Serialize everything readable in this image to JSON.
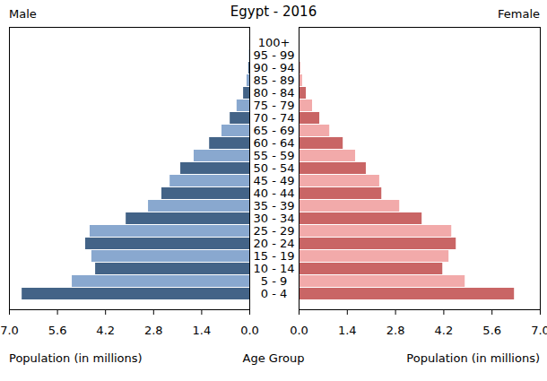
{
  "chart_data": {
    "type": "bar",
    "orientation": "horizontal",
    "title": "Egypt - 2016",
    "x_label": "Population (in millions)",
    "y_label": "Age Group",
    "categories": [
      "0 - 4",
      "5 - 9",
      "10 - 14",
      "15 - 19",
      "20 - 24",
      "25 - 29",
      "30 - 34",
      "35 - 39",
      "40 - 44",
      "45 - 49",
      "50 - 54",
      "55 - 59",
      "60 - 64",
      "65 - 69",
      "70 - 74",
      "75 - 79",
      "80 - 84",
      "85 - 89",
      "90 - 94",
      "95 - 99",
      "100+"
    ],
    "xlim": [
      0,
      7
    ],
    "xticks": [
      0,
      1.4,
      2.8,
      4.2,
      5.6,
      7
    ],
    "series": [
      {
        "name": "Male",
        "values": [
          6.63,
          5.17,
          4.49,
          4.6,
          4.78,
          4.65,
          3.6,
          2.95,
          2.56,
          2.32,
          2.01,
          1.62,
          1.17,
          0.81,
          0.57,
          0.37,
          0.18,
          0.08,
          0.03,
          0.01,
          0.003
        ],
        "colors": [
          "#436387",
          "#89a8cf",
          "#436387",
          "#89a8cf",
          "#436387",
          "#89a8cf",
          "#436387",
          "#89a8cf",
          "#436387",
          "#89a8cf",
          "#436387",
          "#89a8cf",
          "#436387",
          "#89a8cf",
          "#436387",
          "#89a8cf",
          "#436387",
          "#89a8cf",
          "#436387",
          "#89a8cf",
          "#436387"
        ]
      },
      {
        "name": "Female",
        "values": [
          6.25,
          4.82,
          4.17,
          4.35,
          4.56,
          4.43,
          3.57,
          2.92,
          2.4,
          2.34,
          1.95,
          1.64,
          1.28,
          0.89,
          0.6,
          0.39,
          0.21,
          0.1,
          0.04,
          0.01,
          0.002
        ],
        "colors": [
          "#c96565",
          "#f2aaaa",
          "#c96565",
          "#f2aaaa",
          "#c96565",
          "#f2aaaa",
          "#c96565",
          "#f2aaaa",
          "#c96565",
          "#f2aaaa",
          "#c96565",
          "#f2aaaa",
          "#c96565",
          "#f2aaaa",
          "#c96565",
          "#f2aaaa",
          "#c96565",
          "#f2aaaa",
          "#c96565",
          "#f2aaaa",
          "#c96565"
        ]
      }
    ]
  }
}
